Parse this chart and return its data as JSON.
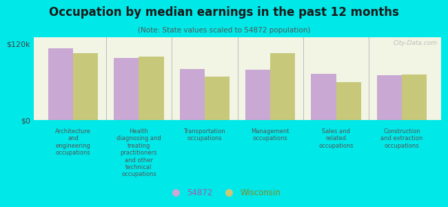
{
  "title": "Occupation by median earnings in the past 12 months",
  "subtitle": "(Note: State values scaled to 54872 population)",
  "background_outer": "#00e8e8",
  "background_inner": "#f2f5e4",
  "categories": [
    "Architecture\nand\nengineering\noccupations",
    "Health\ndiagnosing and\ntreating\npractitioners\nand other\ntechnical\noccupations",
    "Transportation\noccupations",
    "Management\noccupations",
    "Sales and\nrelated\noccupations",
    "Construction\nand extraction\noccupations"
  ],
  "values_54872": [
    113000,
    97000,
    80000,
    79000,
    73000,
    70000
  ],
  "values_wisconsin": [
    105000,
    100000,
    68000,
    105000,
    60000,
    72000
  ],
  "color_54872": "#c9a8d4",
  "color_wisconsin": "#c8c87a",
  "ylim": [
    0,
    130000
  ],
  "yticks": [
    0,
    120000
  ],
  "ytick_labels": [
    "$0",
    "$120k"
  ],
  "legend_label_54872": "54872",
  "legend_label_wisconsin": "Wisconsin",
  "watermark": "City-Data.com",
  "title_color": "#1a1a1a",
  "subtitle_color": "#555555",
  "label_color": "#555555"
}
